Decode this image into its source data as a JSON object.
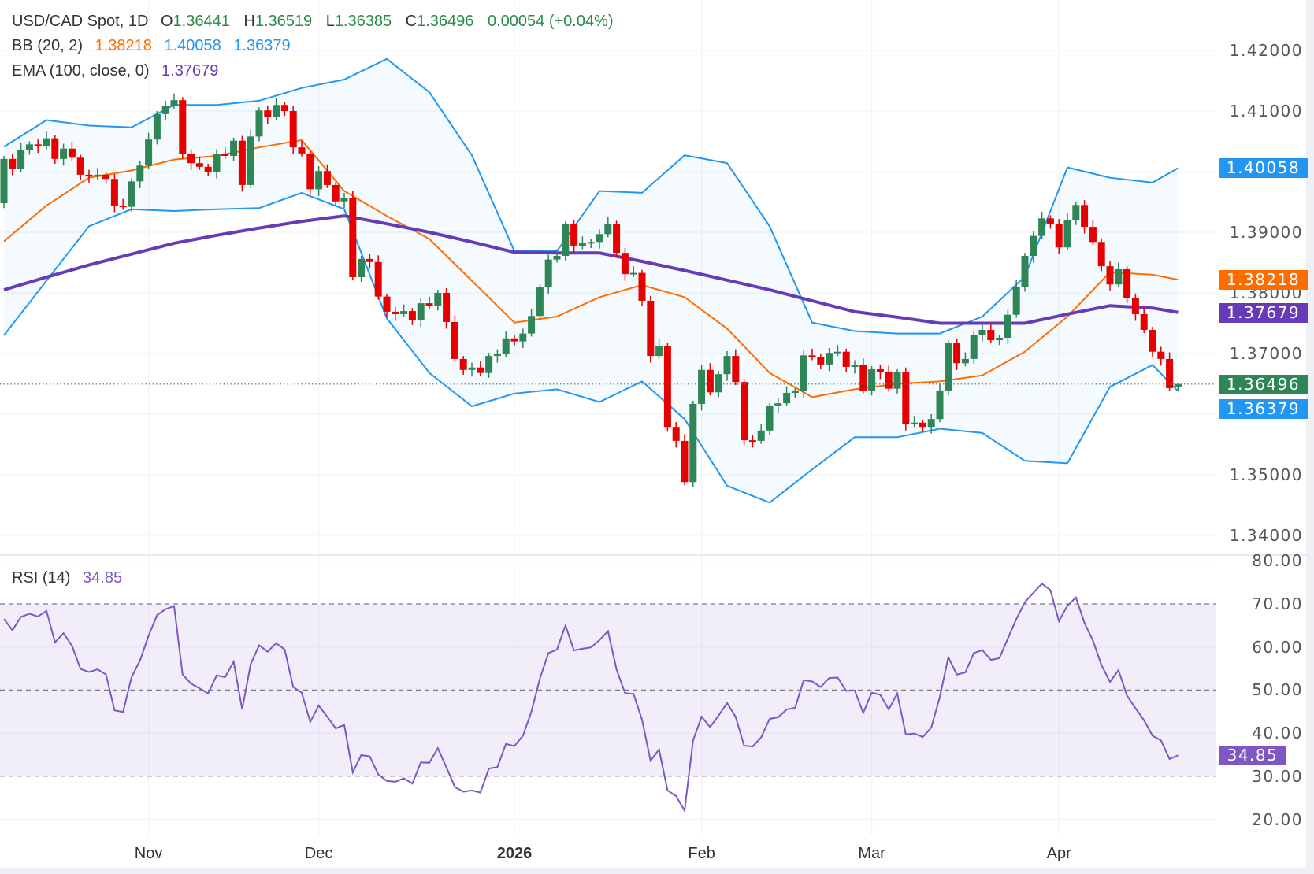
{
  "header": {
    "symbol": "USD/CAD Spot, 1D",
    "o_label": "O",
    "o": "1.36441",
    "h_label": "H",
    "h": "1.36519",
    "l_label": "L",
    "l": "1.36385",
    "c_label": "C",
    "c": "1.36496",
    "change": "0.00054 (+0.04%)"
  },
  "bb_legend": {
    "label": "BB (20, 2)",
    "basis": "1.38218",
    "upper": "1.40058",
    "lower": "1.36379"
  },
  "ema_legend": {
    "label": "EMA (100, close, 0)",
    "value": "1.37679"
  },
  "rsi_legend": {
    "label": "RSI (14)",
    "value": "34.85"
  },
  "price_axis": {
    "ticks": [
      "1.42000",
      "1.41000",
      "1.39000",
      "1.38000",
      "1.37000",
      "1.35000",
      "1.34000"
    ],
    "tick_values": [
      1.42,
      1.41,
      1.39,
      1.38,
      1.37,
      1.35,
      1.34
    ]
  },
  "rsi_axis": {
    "ticks": [
      "80.00",
      "70.00",
      "60.00",
      "50.00",
      "40.00",
      "30.00",
      "20.00"
    ],
    "tick_values": [
      80,
      70,
      60,
      50,
      40,
      30,
      20
    ]
  },
  "badges": {
    "upper": "1.40058",
    "basis": "1.38218",
    "ema": "1.37679",
    "last": "1.36496",
    "lower": "1.36379",
    "rsi": "34.85"
  },
  "time_axis": {
    "labels": [
      "Nov",
      "Dec",
      "2026",
      "Feb",
      "Mar",
      "Apr"
    ],
    "label_bars": [
      17,
      37,
      60,
      82,
      102,
      124
    ]
  },
  "colors": {
    "up": "#2e8555",
    "down": "#e60000",
    "bb_band": "#2196f3",
    "bb_basis": "#ff6d00",
    "ema": "#673ab7",
    "rsi": "#7e57c2",
    "value_green": "#2b8a4a"
  },
  "chart_data": [
    {
      "type": "candlestick",
      "title": "USD/CAD Spot, 1D",
      "ylim": [
        1.34,
        1.42
      ],
      "grid": true,
      "first_open": 1.3948,
      "close": [
        1.4021,
        1.4005,
        1.4036,
        1.4045,
        1.4042,
        1.4055,
        1.4021,
        1.4038,
        1.4023,
        1.3995,
        1.3992,
        1.3995,
        1.3988,
        1.3944,
        1.3942,
        1.3984,
        1.401,
        1.4053,
        1.4095,
        1.4109,
        1.4118,
        1.4029,
        1.4014,
        1.4008,
        1.4,
        1.4029,
        1.4026,
        1.4051,
        1.3978,
        1.4058,
        1.4101,
        1.409,
        1.411,
        1.41,
        1.404,
        1.403,
        1.3971,
        1.4001,
        1.3978,
        1.3951,
        1.3957,
        1.3826,
        1.3856,
        1.3851,
        1.3794,
        1.3769,
        1.3765,
        1.377,
        1.3755,
        1.3783,
        1.3779,
        1.38,
        1.3752,
        1.3691,
        1.3673,
        1.3677,
        1.3668,
        1.3696,
        1.3699,
        1.3725,
        1.372,
        1.3733,
        1.3762,
        1.3809,
        1.3855,
        1.3861,
        1.3913,
        1.3877,
        1.3882,
        1.3884,
        1.3897,
        1.3914,
        1.3866,
        1.3831,
        1.3833,
        1.3787,
        1.3696,
        1.3713,
        1.3579,
        1.3556,
        1.3488,
        1.3617,
        1.3673,
        1.3636,
        1.3666,
        1.3696,
        1.3653,
        1.3557,
        1.3556,
        1.3573,
        1.3613,
        1.3618,
        1.3635,
        1.3638,
        1.3697,
        1.3694,
        1.3682,
        1.3701,
        1.3703,
        1.3678,
        1.3681,
        1.3639,
        1.3674,
        1.3669,
        1.3642,
        1.3669,
        1.3584,
        1.3586,
        1.3579,
        1.3592,
        1.3639,
        1.3717,
        1.3684,
        1.3691,
        1.3731,
        1.3739,
        1.3722,
        1.3726,
        1.3764,
        1.381,
        1.3861,
        1.3894,
        1.3923,
        1.3914,
        1.3875,
        1.392,
        1.3945,
        1.3909,
        1.3884,
        1.3844,
        1.3814,
        1.3839,
        1.3791,
        1.3765,
        1.3739,
        1.3703,
        1.3691,
        1.3643,
        1.36496
      ],
      "last_bar": {
        "open": 1.36441,
        "high": 1.36519,
        "low": 1.36385,
        "close": 1.36496
      },
      "overlay_sample_bars": [
        0,
        5,
        10,
        15,
        20,
        25,
        30,
        35,
        40,
        45,
        50,
        55,
        60,
        65,
        70,
        75,
        80,
        85,
        90,
        95,
        100,
        105,
        110,
        115,
        120,
        125,
        130,
        135,
        138
      ],
      "series": [
        {
          "name": "BB upper",
          "values": [
            1.4041,
            1.4085,
            1.4076,
            1.4073,
            1.411,
            1.411,
            1.4117,
            1.4138,
            1.4152,
            1.4186,
            1.4131,
            1.4027,
            1.3869,
            1.3869,
            1.3968,
            1.3965,
            1.4027,
            1.4014,
            1.391,
            1.3751,
            1.3737,
            1.3733,
            1.3733,
            1.3761,
            1.3827,
            1.4007,
            1.399,
            1.3982,
            1.40058
          ]
        },
        {
          "name": "BB basis",
          "values": [
            1.3885,
            1.3944,
            1.399,
            1.4002,
            1.402,
            1.4026,
            1.404,
            1.4052,
            1.3968,
            1.3927,
            1.3889,
            1.382,
            1.3751,
            1.3761,
            1.3793,
            1.3813,
            1.3793,
            1.3741,
            1.3668,
            1.3628,
            1.3641,
            1.365,
            1.3654,
            1.3664,
            1.3703,
            1.3761,
            1.3834,
            1.383,
            1.38218
          ]
        },
        {
          "name": "BB lower",
          "values": [
            1.373,
            1.382,
            1.391,
            1.3938,
            1.3935,
            1.3938,
            1.394,
            1.3965,
            1.3938,
            1.3758,
            1.3668,
            1.3613,
            1.3634,
            1.3641,
            1.362,
            1.3654,
            1.3592,
            1.3482,
            1.3454,
            1.3509,
            1.3562,
            1.3562,
            1.3576,
            1.3569,
            1.3523,
            1.3519,
            1.3645,
            1.3681,
            1.36379
          ]
        },
        {
          "name": "EMA (100, close, 0)",
          "values": [
            1.3805,
            1.3826,
            1.3846,
            1.3864,
            1.3882,
            1.3895,
            1.3907,
            1.3918,
            1.3927,
            1.3914,
            1.39,
            1.3884,
            1.3867,
            1.3866,
            1.3866,
            1.3852,
            1.3837,
            1.3821,
            1.3805,
            1.3787,
            1.3769,
            1.376,
            1.375,
            1.375,
            1.375,
            1.3765,
            1.3779,
            1.3775,
            1.37679
          ]
        }
      ]
    },
    {
      "type": "line",
      "title": "RSI (14)",
      "ylim": [
        20,
        80
      ],
      "bands": [
        30,
        50,
        70
      ],
      "values": [
        66.5,
        63.9,
        67.0,
        67.7,
        67.1,
        68.4,
        61.1,
        63.2,
        60.3,
        54.9,
        54.2,
        54.8,
        53.6,
        45.3,
        44.9,
        53.0,
        56.9,
        62.6,
        67.4,
        68.8,
        69.5,
        53.6,
        51.5,
        50.4,
        49.2,
        53.4,
        53.0,
        56.6,
        45.5,
        56.0,
        60.4,
        58.9,
        60.9,
        59.4,
        50.7,
        49.4,
        42.6,
        46.4,
        43.8,
        41.1,
        41.9,
        30.9,
        34.9,
        34.6,
        30.4,
        28.9,
        28.7,
        29.5,
        28.3,
        33.2,
        33.1,
        36.5,
        32.1,
        27.5,
        26.4,
        26.7,
        26.2,
        31.8,
        32.1,
        37.5,
        37.0,
        39.4,
        45.0,
        52.7,
        58.6,
        59.4,
        65.0,
        59.2,
        59.6,
        59.9,
        61.6,
        63.7,
        54.8,
        49.3,
        49.1,
        43.1,
        33.6,
        36.2,
        26.7,
        25.4,
        22.0,
        38.3,
        43.8,
        41.4,
        44.1,
        47.0,
        43.8,
        37.1,
        36.9,
        39.0,
        43.3,
        43.7,
        45.5,
        45.9,
        52.3,
        52.0,
        50.7,
        52.8,
        52.9,
        49.8,
        49.9,
        44.7,
        49.4,
        48.9,
        45.5,
        49.2,
        39.7,
        39.9,
        39.1,
        41.3,
        48.4,
        57.6,
        53.6,
        54.1,
        58.6,
        59.3,
        57.0,
        57.4,
        62.0,
        66.5,
        70.4,
        72.6,
        74.7,
        73.2,
        66.0,
        69.6,
        71.5,
        65.6,
        61.5,
        55.8,
        51.9,
        54.6,
        48.7,
        45.8,
        43.0,
        39.4,
        38.3,
        34.0,
        34.85
      ]
    }
  ]
}
